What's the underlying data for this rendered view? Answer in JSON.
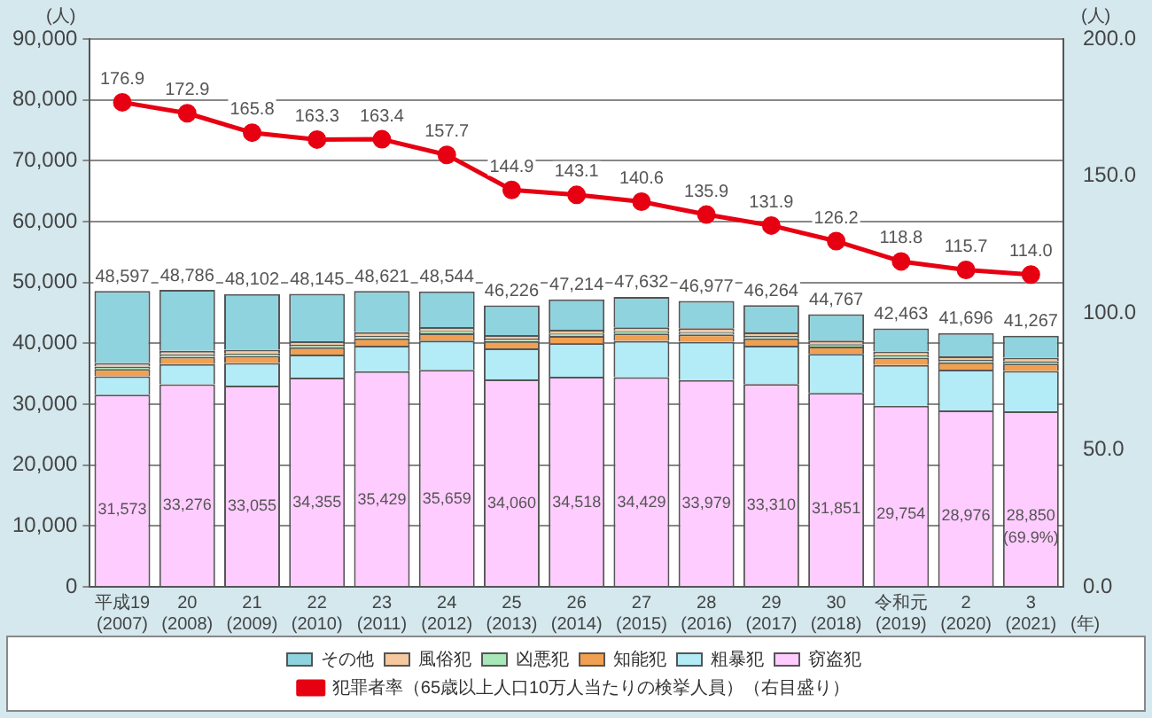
{
  "chart_data": {
    "type": "bar",
    "stacked": true,
    "xlabel": "(年)",
    "ylabel": "(人)",
    "y2label": "(人)",
    "categories": [
      "平成19\n(2007)",
      "20\n(2008)",
      "21\n(2009)",
      "22\n(2010)",
      "23\n(2011)",
      "24\n(2012)",
      "25\n(2013)",
      "26\n(2014)",
      "27\n(2015)",
      "28\n(2016)",
      "29\n(2017)",
      "30\n(2018)",
      "令和元\n(2019)",
      "2\n(2020)",
      "3\n(2021)"
    ],
    "series": [
      {
        "name": "窃盗犯",
        "color": "#ffccff",
        "values": [
          31573,
          33276,
          33055,
          34355,
          35429,
          35659,
          34060,
          34518,
          34429,
          33979,
          33310,
          31851,
          29754,
          28976,
          28850
        ],
        "value_labels": [
          "31,573",
          "33,276",
          "33,055",
          "34,355",
          "35,429",
          "35,659",
          "34,060",
          "34,518",
          "34,429",
          "33,979",
          "33,310",
          "31,851",
          "29,754",
          "28,976",
          "28,850"
        ]
      },
      {
        "name": "粗暴犯",
        "color": "#b3ecf7",
        "values": [
          3000,
          3300,
          3700,
          3800,
          4200,
          4800,
          5100,
          5500,
          6000,
          6300,
          6300,
          6400,
          6700,
          6700,
          6600
        ]
      },
      {
        "name": "知能犯",
        "color": "#f0a050",
        "values": [
          1200,
          1200,
          1200,
          1200,
          1200,
          1200,
          1200,
          1200,
          1200,
          1200,
          1200,
          1200,
          1200,
          1200,
          1200
        ]
      },
      {
        "name": "凶悪犯",
        "color": "#a8e8b8",
        "values": [
          400,
          400,
          400,
          400,
          400,
          400,
          400,
          400,
          400,
          400,
          400,
          400,
          400,
          400,
          400
        ]
      },
      {
        "name": "風俗犯",
        "color": "#f5c8a0",
        "values": [
          600,
          600,
          600,
          600,
          600,
          600,
          600,
          600,
          600,
          600,
          600,
          600,
          600,
          600,
          600
        ]
      },
      {
        "name": "その他",
        "color": "#8fd3de",
        "values": [
          11824,
          10010,
          9147,
          7790,
          6792,
          5885,
          4866,
          4996,
          5003,
          4498,
          4454,
          4316,
          3809,
          3820,
          3617
        ]
      },
      {
        "name": "犯罪者率（65歳以上人口10万人当たりの検挙人員）（右目盛り）",
        "type": "line",
        "axis": "y2",
        "color": "#e60012",
        "marker": "circle",
        "values": [
          176.9,
          172.9,
          165.8,
          163.3,
          163.4,
          157.7,
          144.9,
          143.1,
          140.6,
          135.9,
          131.9,
          126.2,
          118.8,
          115.7,
          114.0
        ],
        "value_labels": [
          "176.9",
          "172.9",
          "165.8",
          "163.3",
          "163.4",
          "157.7",
          "144.9",
          "143.1",
          "140.6",
          "135.9",
          "131.9",
          "126.2",
          "118.8",
          "115.7",
          "114.0"
        ]
      }
    ],
    "totals": [
      "48,597",
      "48,786",
      "48,102",
      "48,145",
      "48,621",
      "48,544",
      "46,226",
      "47,214",
      "47,632",
      "46,977",
      "46,264",
      "44,767",
      "42,463",
      "41,696",
      "41,267"
    ],
    "annotations": [
      "(69.9%)"
    ],
    "ylim": [
      0,
      90000
    ],
    "yticks": [
      {
        "value": 0,
        "label": "0"
      },
      {
        "value": 10000,
        "label": "10,000"
      },
      {
        "value": 20000,
        "label": "20,000"
      },
      {
        "value": 30000,
        "label": "30,000"
      },
      {
        "value": 40000,
        "label": "40,000"
      },
      {
        "value": 50000,
        "label": "50,000"
      },
      {
        "value": 60000,
        "label": "60,000"
      },
      {
        "value": 70000,
        "label": "70,000"
      },
      {
        "value": 80000,
        "label": "80,000"
      },
      {
        "value": 90000,
        "label": "90,000"
      }
    ],
    "y2lim": [
      0,
      200
    ],
    "y2ticks": [
      {
        "value": 0,
        "label": "0.0"
      },
      {
        "value": 50,
        "label": "50.0"
      },
      {
        "value": 100,
        "label": "100.0"
      },
      {
        "value": 150,
        "label": "150.0"
      },
      {
        "value": 200,
        "label": "200.0"
      }
    ],
    "grid": "y",
    "legend": "bottom"
  }
}
